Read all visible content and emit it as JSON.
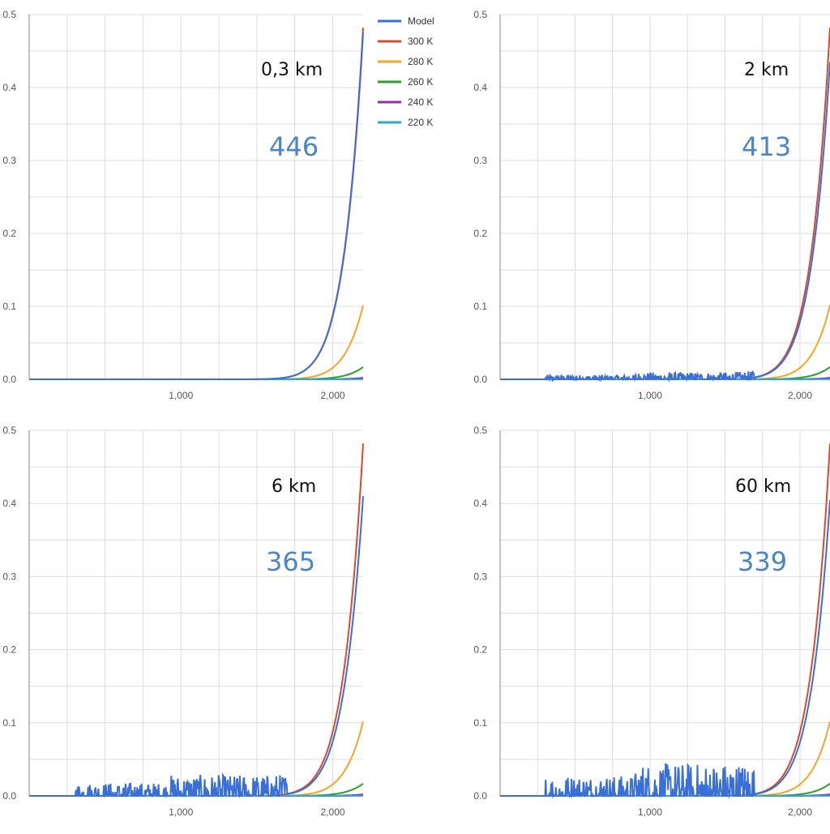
{
  "chart_data": [
    {
      "type": "line",
      "panel_label": "0,3 km",
      "panel_value": "446",
      "xlim": [
        0,
        2200
      ],
      "ylim": [
        0,
        0.5
      ],
      "x_ticks": [
        1000,
        2000
      ],
      "x_tick_labels": [
        "1,000",
        "2,000"
      ],
      "y_ticks": [
        0,
        0.1,
        0.2,
        0.3,
        0.4,
        0.5
      ],
      "y_tick_labels": [
        "0.0",
        "0.1",
        "0.2",
        "0.3",
        "0.4",
        "0.5"
      ],
      "grid": true,
      "legend_position": "right",
      "series": [
        {
          "name": "Model",
          "color": "#3a6fd8",
          "model": {
            "peak": 0.475,
            "noise": 0.0
          }
        },
        {
          "name": "300 K",
          "temperature": 300,
          "color": "#d94a2b"
        },
        {
          "name": "280 K",
          "temperature": 280,
          "color": "#f5a623"
        },
        {
          "name": "260 K",
          "temperature": 260,
          "color": "#2ca02c"
        },
        {
          "name": "240 K",
          "temperature": 240,
          "color": "#9b27b0"
        },
        {
          "name": "220 K",
          "temperature": 220,
          "color": "#26a9d8"
        }
      ]
    },
    {
      "type": "line",
      "panel_label": "2 km",
      "panel_value": "413",
      "xlim": [
        0,
        2200
      ],
      "ylim": [
        0,
        0.5
      ],
      "x_ticks": [
        1000,
        2000
      ],
      "x_tick_labels": [
        "1,000",
        "2,000"
      ],
      "y_ticks": [
        0,
        0.1,
        0.2,
        0.3,
        0.4,
        0.5
      ],
      "y_tick_labels": [
        "0.0",
        "0.1",
        "0.2",
        "0.3",
        "0.4",
        "0.5"
      ],
      "grid": true,
      "series": [
        {
          "name": "Model",
          "color": "#3a6fd8",
          "model": {
            "peak": 0.435,
            "noise": 0.006
          }
        },
        {
          "name": "300 K",
          "temperature": 300,
          "color": "#d94a2b"
        },
        {
          "name": "280 K",
          "temperature": 280,
          "color": "#f5a623"
        },
        {
          "name": "260 K",
          "temperature": 260,
          "color": "#2ca02c"
        },
        {
          "name": "240 K",
          "temperature": 240,
          "color": "#9b27b0"
        },
        {
          "name": "220 K",
          "temperature": 220,
          "color": "#26a9d8"
        }
      ]
    },
    {
      "type": "line",
      "panel_label": "6 km",
      "panel_value": "365",
      "xlim": [
        0,
        2200
      ],
      "ylim": [
        0,
        0.5
      ],
      "x_ticks": [
        1000,
        2000
      ],
      "x_tick_labels": [
        "1,000",
        "2,000"
      ],
      "y_ticks": [
        0,
        0.1,
        0.2,
        0.3,
        0.4,
        0.5
      ],
      "y_tick_labels": [
        "0.0",
        "0.1",
        "0.2",
        "0.3",
        "0.4",
        "0.5"
      ],
      "grid": true,
      "series": [
        {
          "name": "Model",
          "color": "#3a6fd8",
          "model": {
            "peak": 0.41,
            "noise": 0.018
          }
        },
        {
          "name": "300 K",
          "temperature": 300,
          "color": "#d94a2b"
        },
        {
          "name": "280 K",
          "temperature": 280,
          "color": "#f5a623"
        },
        {
          "name": "260 K",
          "temperature": 260,
          "color": "#2ca02c"
        },
        {
          "name": "240 K",
          "temperature": 240,
          "color": "#9b27b0"
        },
        {
          "name": "220 K",
          "temperature": 220,
          "color": "#26a9d8"
        }
      ]
    },
    {
      "type": "line",
      "panel_label": "60 km",
      "panel_value": "339",
      "xlim": [
        0,
        2200
      ],
      "ylim": [
        0,
        0.5
      ],
      "x_ticks": [
        1000,
        2000
      ],
      "x_tick_labels": [
        "1,000",
        "2,000"
      ],
      "y_ticks": [
        0,
        0.1,
        0.2,
        0.3,
        0.4,
        0.5
      ],
      "y_tick_labels": [
        "0.0",
        "0.1",
        "0.2",
        "0.3",
        "0.4",
        "0.5"
      ],
      "grid": true,
      "series": [
        {
          "name": "Model",
          "color": "#3a6fd8",
          "model": {
            "peak": 0.405,
            "noise": 0.028
          }
        },
        {
          "name": "300 K",
          "temperature": 300,
          "color": "#d94a2b"
        },
        {
          "name": "280 K",
          "temperature": 280,
          "color": "#f5a623"
        },
        {
          "name": "260 K",
          "temperature": 260,
          "color": "#2ca02c"
        },
        {
          "name": "240 K",
          "temperature": 240,
          "color": "#9b27b0"
        },
        {
          "name": "220 K",
          "temperature": 220,
          "color": "#26a9d8"
        }
      ]
    }
  ],
  "legend": {
    "items": [
      {
        "label": "Model",
        "color": "#3a6fd8"
      },
      {
        "label": "300 K",
        "color": "#d94a2b"
      },
      {
        "label": "280 K",
        "color": "#f5a623"
      },
      {
        "label": "260 K",
        "color": "#2ca02c"
      },
      {
        "label": "240 K",
        "color": "#9b27b0"
      },
      {
        "label": "220 K",
        "color": "#26a9d8"
      }
    ]
  },
  "colors": {
    "grid": "#dddddd",
    "axis": "#888888",
    "value_text": "#4a86c8"
  }
}
